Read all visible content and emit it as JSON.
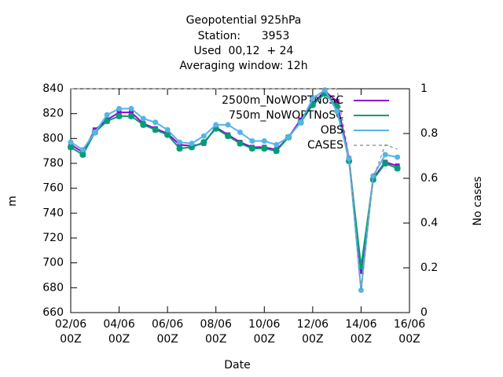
{
  "chart_data": {
    "type": "line",
    "title": [
      "Geopotential 925hPa",
      "Station:      3953",
      "Used  00,12  + 24",
      "Averaging window: 12h"
    ],
    "x_label": "Date",
    "y_label": "m",
    "y2_label": "No cases",
    "x": [
      "02/06 00Z",
      "02/06 12Z",
      "03/06 00Z",
      "03/06 12Z",
      "04/06 00Z",
      "04/06 12Z",
      "05/06 00Z",
      "05/06 12Z",
      "06/06 00Z",
      "06/06 12Z",
      "07/06 00Z",
      "07/06 12Z",
      "08/06 00Z",
      "08/06 12Z",
      "09/06 00Z",
      "09/06 12Z",
      "10/06 00Z",
      "10/06 12Z",
      "11/06 00Z",
      "11/06 12Z",
      "12/06 00Z",
      "12/06 12Z",
      "13/06 00Z",
      "13/06 12Z",
      "14/06 00Z",
      "14/06 12Z",
      "15/06 00Z",
      "15/06 12Z"
    ],
    "xlim": [
      0,
      28
    ],
    "xticks": [
      {
        "value": 0,
        "label": "02/06 00Z"
      },
      {
        "value": 4,
        "label": "04/06 00Z"
      },
      {
        "value": 8,
        "label": "06/06 00Z"
      },
      {
        "value": 12,
        "label": "08/06 00Z"
      },
      {
        "value": 16,
        "label": "10/06 00Z"
      },
      {
        "value": 20,
        "label": "12/06 00Z"
      },
      {
        "value": 24,
        "label": "14/06 00Z"
      },
      {
        "value": 28,
        "label": "16/06 00Z"
      }
    ],
    "ylim": [
      660,
      840
    ],
    "yticks": [
      660,
      680,
      700,
      720,
      740,
      760,
      780,
      800,
      820,
      840
    ],
    "y2lim": [
      0,
      1
    ],
    "y2ticks": [
      0,
      0.2,
      0.4,
      0.6,
      0.8,
      1
    ],
    "legend": "upper right",
    "series": [
      {
        "name": "2500m_NoWOPTNoSC",
        "color": "#9400d3",
        "values": [
          795,
          789,
          807,
          815,
          821,
          821,
          812,
          808,
          804,
          795,
          794,
          796,
          809,
          803,
          797,
          793,
          793,
          791,
          801,
          815,
          828,
          838,
          830,
          784,
          693,
          768,
          781,
          778
        ]
      },
      {
        "name": "750m_NoWOPTNoSC",
        "color": "#009e73",
        "values": [
          793,
          787,
          805,
          814,
          818,
          818,
          811,
          807,
          803,
          792,
          793,
          797,
          808,
          802,
          796,
          792,
          792,
          790,
          801,
          813,
          827,
          836,
          826,
          782,
          697,
          767,
          780,
          776
        ]
      },
      {
        "name": "OBS",
        "color": "#56b4e9",
        "values": [
          797,
          791,
          805,
          819,
          824,
          824,
          816,
          813,
          807,
          797,
          796,
          802,
          811,
          811,
          805,
          798,
          798,
          795,
          801,
          813,
          832,
          839,
          822,
          784,
          678,
          770,
          787,
          785
        ]
      },
      {
        "name": "CASES",
        "color": "#888888",
        "axis": "y2",
        "dashed": true,
        "values": [
          1,
          1,
          1,
          1,
          1,
          1,
          1,
          1,
          1,
          1,
          1,
          1,
          1,
          1,
          1,
          1,
          1,
          1,
          1,
          1,
          1,
          1,
          1,
          0.7,
          0.1,
          0.6,
          0.75,
          0.73
        ]
      }
    ]
  }
}
